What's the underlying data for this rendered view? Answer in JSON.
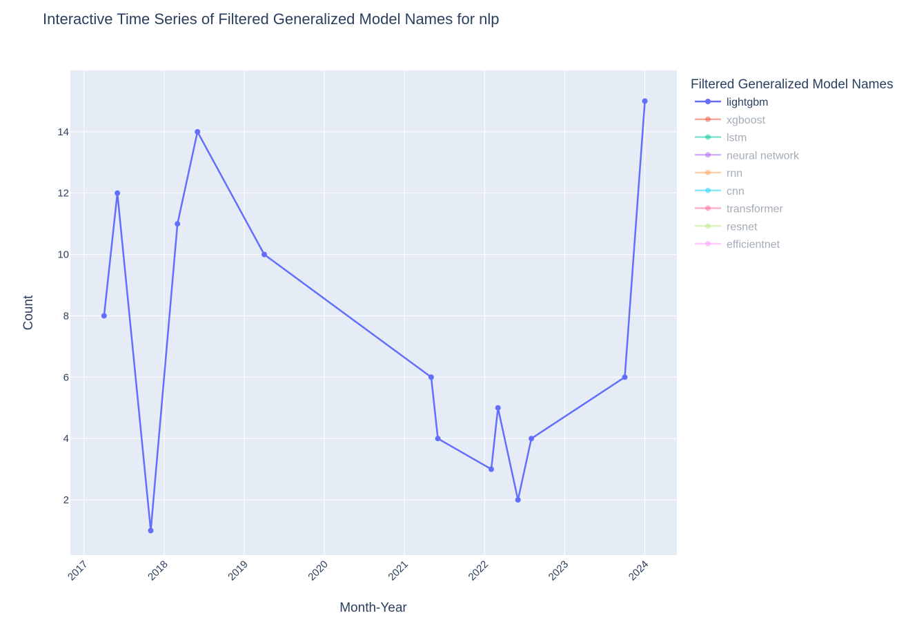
{
  "chart_data": {
    "type": "line",
    "title": "Interactive Time Series of Filtered Generalized Model Names for nlp",
    "xlabel": "Month-Year",
    "ylabel": "Count",
    "x_ticks": [
      "2017",
      "2018",
      "2019",
      "2020",
      "2021",
      "2022",
      "2023",
      "2024"
    ],
    "y_ticks": [
      2,
      4,
      6,
      8,
      10,
      12,
      14
    ],
    "xlim": [
      2016.83,
      2024.4
    ],
    "ylim": [
      0.2,
      16.0
    ],
    "grid": true,
    "legend_title": "Filtered Generalized Model Names",
    "legend_position": "right",
    "series": [
      {
        "name": "lightgbm",
        "color": "#636efa",
        "visible": true,
        "x": [
          "2017-04",
          "2017-06",
          "2017-11",
          "2018-03",
          "2018-06",
          "2019-04",
          "2021-05",
          "2021-06",
          "2022-02",
          "2022-03",
          "2022-06",
          "2022-08",
          "2023-10",
          "2024-01"
        ],
        "values": [
          8,
          12,
          1,
          11,
          14,
          10,
          6,
          4,
          3,
          5,
          2,
          4,
          6,
          15
        ]
      },
      {
        "name": "xgboost",
        "color": "#EF553B",
        "visible": false
      },
      {
        "name": "lstm",
        "color": "#00cc96",
        "visible": false
      },
      {
        "name": "neural network",
        "color": "#ab63fa",
        "visible": false
      },
      {
        "name": "rnn",
        "color": "#FFA15A",
        "visible": false
      },
      {
        "name": "cnn",
        "color": "#19d3f3",
        "visible": false
      },
      {
        "name": "transformer",
        "color": "#FF6692",
        "visible": false
      },
      {
        "name": "resnet",
        "color": "#B6E880",
        "visible": false
      },
      {
        "name": "efficientnet",
        "color": "#FF97FF",
        "visible": false
      }
    ]
  },
  "colors": {
    "plot_bg": "#e5ecf6",
    "grid": "#ffffff",
    "text": "#2a3f5f",
    "legend_inactive_text": "#a5adb8"
  }
}
